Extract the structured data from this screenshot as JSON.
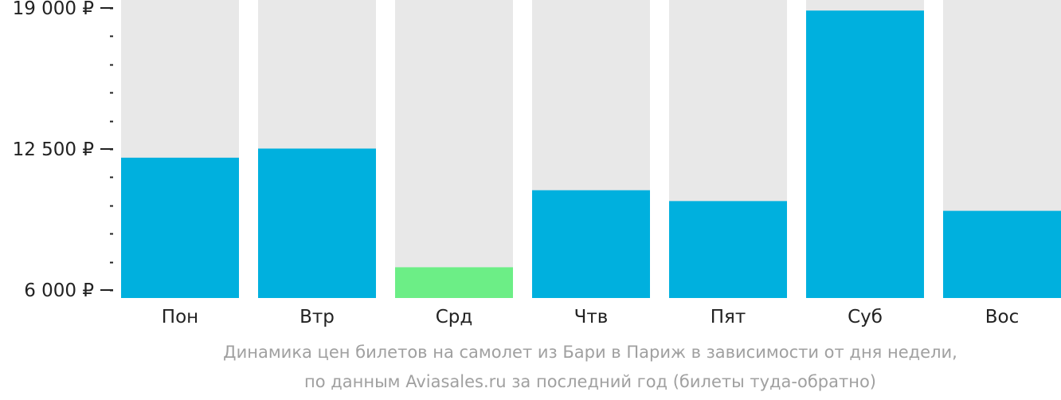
{
  "chart_data": {
    "type": "bar",
    "categories": [
      "Пон",
      "Втр",
      "Срд",
      "Чтв",
      "Пят",
      "Суб",
      "Вос"
    ],
    "values": [
      12100,
      12520,
      7050,
      10600,
      10100,
      18880,
      9650
    ],
    "ylim": [
      6000,
      19000
    ],
    "yticks": [
      {
        "value": 19000,
        "label": "19 000 ₽"
      },
      {
        "value": 12500,
        "label": "12 500 ₽"
      },
      {
        "value": 6000,
        "label": "6 000 ₽"
      }
    ],
    "minor_tick_step": 1300,
    "highlight_category": "Срд",
    "colors": {
      "bar": "#00b0de",
      "highlight": "#6cee86",
      "background_bar": "#e8e8e8",
      "axis": "#222222"
    },
    "grid": false,
    "legend": "none"
  },
  "caption": {
    "line1": "Динамика цен билетов на самолет из Бари в Париж в зависимости от дня недели,",
    "line2": "по данным Aviasales.ru за последний год (билеты туда-обратно)"
  }
}
